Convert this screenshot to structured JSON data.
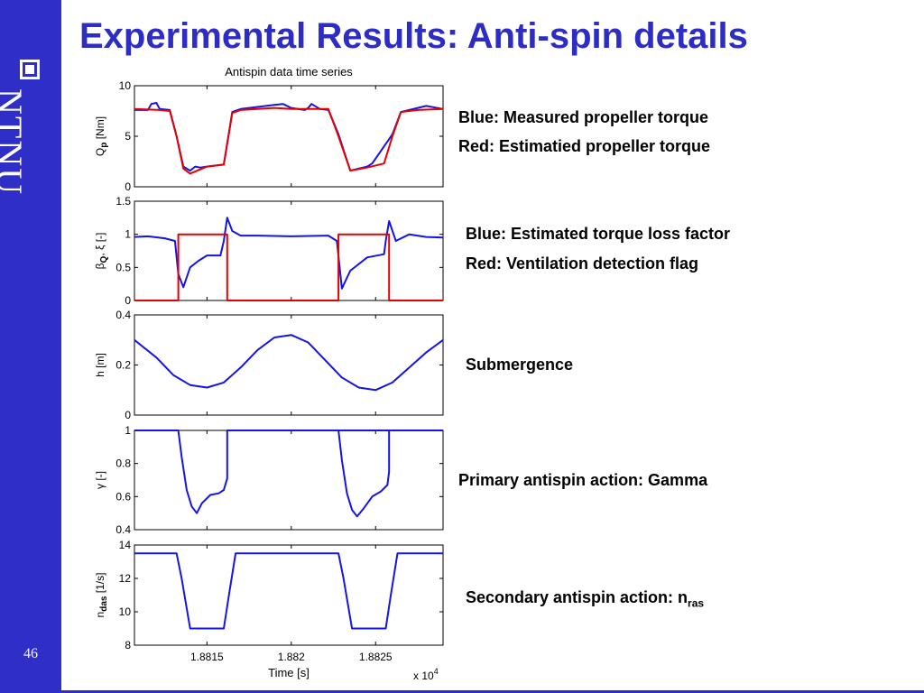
{
  "slide": {
    "title": "Experimental Results: Anti-spin details",
    "logo_text": "NTNU",
    "page_number": "46"
  },
  "captions": [
    {
      "text": "Blue: Measured propeller torque"
    },
    {
      "text": "Red: Estimatied propeller torque"
    },
    {
      "text": "Blue: Estimated torque loss factor"
    },
    {
      "text": "Red: Ventilation detection flag"
    },
    {
      "text": "Submergence"
    },
    {
      "text": "Primary antispin action: Gamma"
    },
    {
      "text": "Secondary antispin action: n",
      "subscript": "ras"
    }
  ],
  "colors": {
    "accent": "#2f2fc8",
    "title": "#2d2dc4",
    "blue_series": "#1414e6",
    "red_series": "#e60000"
  },
  "chart_data": {
    "type": "line",
    "title": "Antispin data time series",
    "xlabel": "Time [s]",
    "x_multiplier": "x 10^4",
    "xlim": [
      1.88107,
      1.8829
    ],
    "xticks": [
      1.8815,
      1.882,
      1.8825
    ],
    "xtick_labels": [
      "1.8815",
      "1.882",
      "1.8825"
    ],
    "panels": [
      {
        "id": "torque",
        "ylabel": "Q",
        "ylabel_sub": "p",
        "ylabel_tail": " [Nm]",
        "ylim": [
          0,
          10
        ],
        "yticks": [
          0,
          5,
          10
        ],
        "series": [
          {
            "color": "#1414e6",
            "x": [
              1.88107,
              1.88115,
              1.88117,
              1.8812,
              1.88122,
              1.88128,
              1.88132,
              1.88136,
              1.8814,
              1.88143,
              1.88146,
              1.8815,
              1.8816,
              1.88165,
              1.8817,
              1.88175,
              1.8819,
              1.88195,
              1.882,
              1.88208,
              1.8821,
              1.88212,
              1.88217,
              1.88222,
              1.88228,
              1.88235,
              1.88245,
              1.88248,
              1.8826,
              1.88265,
              1.8827,
              1.8828,
              1.8829
            ],
            "y": [
              7.6,
              7.6,
              8.2,
              8.3,
              7.7,
              7.6,
              5.0,
              2.0,
              1.6,
              2.0,
              1.9,
              2.0,
              2.2,
              7.4,
              7.7,
              7.8,
              8.1,
              8.2,
              7.8,
              7.6,
              7.8,
              8.2,
              7.7,
              7.6,
              5.2,
              1.6,
              2.0,
              2.3,
              5.2,
              7.4,
              7.6,
              8.0,
              7.7
            ]
          },
          {
            "color": "#e60000",
            "x": [
              1.88107,
              1.88122,
              1.88128,
              1.88132,
              1.88136,
              1.8814,
              1.8815,
              1.8816,
              1.88165,
              1.8817,
              1.8818,
              1.8819,
              1.882,
              1.8821,
              1.88222,
              1.88228,
              1.88235,
              1.88245,
              1.88255,
              1.8826,
              1.88265,
              1.88275,
              1.8829
            ],
            "y": [
              7.7,
              7.6,
              7.5,
              5.0,
              1.8,
              1.3,
              2.0,
              2.2,
              7.3,
              7.6,
              7.7,
              7.8,
              7.7,
              7.7,
              7.7,
              5.0,
              1.6,
              1.9,
              2.3,
              5.0,
              7.4,
              7.6,
              7.7
            ]
          }
        ]
      },
      {
        "id": "loss",
        "ylabel": "β",
        "ylabel_sub": "Q",
        "ylabel_tail": ", ξ [-]",
        "ylim": [
          0,
          1.5
        ],
        "yticks": [
          0,
          0.5,
          1,
          1.5
        ],
        "series": [
          {
            "color": "#1414e6",
            "x": [
              1.88107,
              1.88115,
              1.88125,
              1.88131,
              1.88133,
              1.88136,
              1.8814,
              1.88145,
              1.8815,
              1.88158,
              1.8816,
              1.88162,
              1.88165,
              1.8817,
              1.8818,
              1.882,
              1.88222,
              1.88227,
              1.8823,
              1.88235,
              1.88245,
              1.88255,
              1.88256,
              1.88258,
              1.88262,
              1.8827,
              1.8828,
              1.8829
            ],
            "y": [
              0.96,
              0.97,
              0.94,
              0.9,
              0.4,
              0.2,
              0.5,
              0.6,
              0.68,
              0.68,
              0.9,
              1.25,
              1.05,
              0.98,
              0.98,
              0.97,
              0.98,
              0.9,
              0.18,
              0.45,
              0.65,
              0.7,
              0.9,
              1.2,
              0.9,
              1.0,
              0.96,
              0.95
            ]
          },
          {
            "color": "#e60000",
            "x": [
              1.88107,
              1.88133,
              1.88133,
              1.88162,
              1.88162,
              1.88228,
              1.88228,
              1.88258,
              1.88258,
              1.8829
            ],
            "y": [
              0,
              0,
              1,
              1,
              0,
              0,
              1,
              1,
              0,
              0
            ]
          }
        ]
      },
      {
        "id": "submergence",
        "ylabel": "h [m]",
        "ylim": [
          0,
          0.4
        ],
        "yticks": [
          0,
          0.2,
          0.4
        ],
        "series": [
          {
            "color": "#1414e6",
            "x": [
              1.88107,
              1.8812,
              1.8813,
              1.8814,
              1.8815,
              1.8816,
              1.8817,
              1.8818,
              1.8819,
              1.882,
              1.8821,
              1.8822,
              1.8823,
              1.8824,
              1.8825,
              1.8826,
              1.8827,
              1.8828,
              1.8829
            ],
            "y": [
              0.3,
              0.23,
              0.16,
              0.12,
              0.11,
              0.13,
              0.19,
              0.26,
              0.31,
              0.32,
              0.29,
              0.22,
              0.15,
              0.11,
              0.1,
              0.13,
              0.19,
              0.25,
              0.3
            ]
          }
        ]
      },
      {
        "id": "gamma",
        "ylabel": "γ [-]",
        "ylim": [
          0.4,
          1.0
        ],
        "yticks": [
          0.4,
          0.6,
          0.8,
          1.0
        ],
        "series": [
          {
            "color": "#1414e6",
            "x": [
              1.88107,
              1.88133,
              1.88135,
              1.88138,
              1.88141,
              1.88144,
              1.88147,
              1.88152,
              1.88157,
              1.8816,
              1.88162,
              1.88162,
              1.8829
            ],
            "y": [
              1.0,
              1.0,
              0.84,
              0.64,
              0.54,
              0.5,
              0.56,
              0.61,
              0.62,
              0.64,
              0.71,
              1.0,
              1.0
            ],
            "y_extra": [
              1.0
            ]
          },
          {
            "color": "#1414e6",
            "x": [
              1.88228,
              1.8823,
              1.88233,
              1.88236,
              1.88239,
              1.88243,
              1.88248,
              1.88253,
              1.88257,
              1.88258,
              1.88258
            ],
            "y": [
              1.0,
              0.82,
              0.62,
              0.52,
              0.48,
              0.53,
              0.6,
              0.63,
              0.67,
              0.75,
              1.0
            ]
          }
        ]
      },
      {
        "id": "nras",
        "ylabel": "n",
        "ylabel_sub": "das",
        "ylabel_tail": " [1/s]",
        "ylim": [
          8,
          14
        ],
        "yticks": [
          8,
          10,
          12,
          14
        ],
        "series": [
          {
            "color": "#1414e6",
            "x": [
              1.88107,
              1.88132,
              1.88135,
              1.8814,
              1.8816,
              1.88163,
              1.88167,
              1.88228,
              1.88231,
              1.88236,
              1.88256,
              1.88259,
              1.88263,
              1.8829
            ],
            "y": [
              13.5,
              13.5,
              12.0,
              9.0,
              9.0,
              11.0,
              13.5,
              13.5,
              12.0,
              9.0,
              9.0,
              11.0,
              13.5,
              13.5
            ]
          }
        ]
      }
    ]
  }
}
